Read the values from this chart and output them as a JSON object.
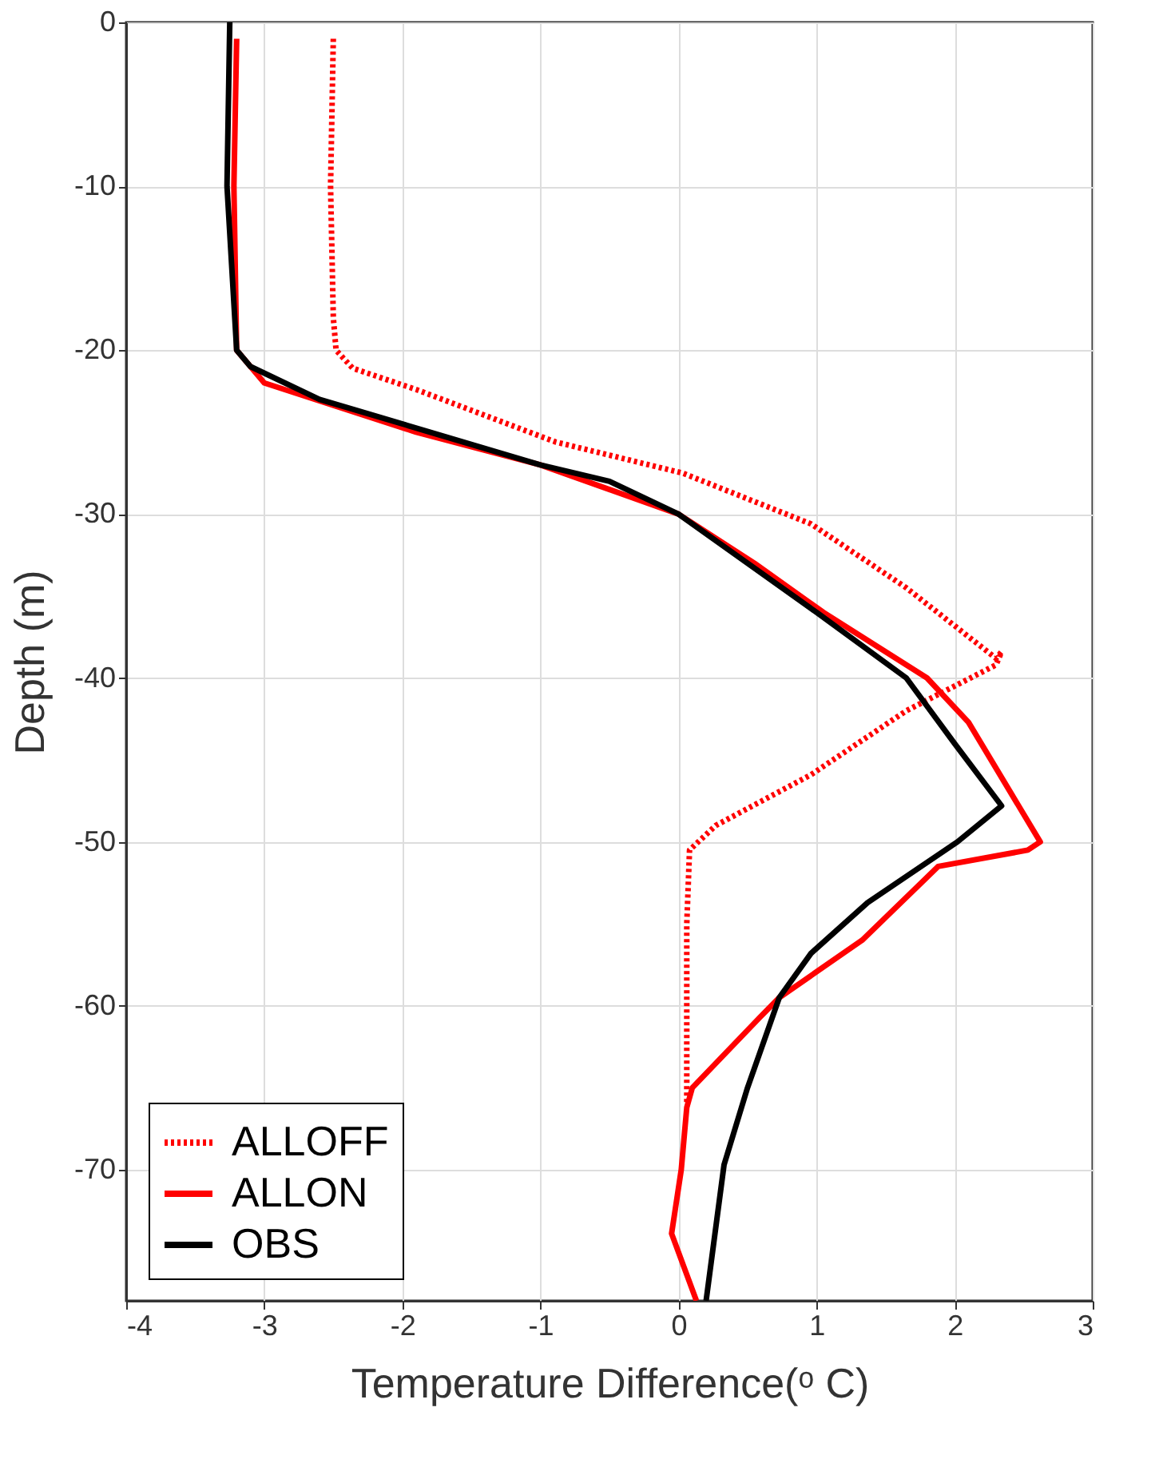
{
  "chart_data": {
    "type": "line",
    "xlabel": "Temperature Difference(ᵒ C)",
    "ylabel": "Depth (m)",
    "xlim": [
      -4,
      3
    ],
    "xticks": [
      -4,
      -3,
      -2,
      -1,
      0,
      1,
      2,
      3
    ],
    "ylim": [
      -78,
      0
    ],
    "yticks": [
      -70,
      -60,
      -50,
      -40,
      -30,
      -20,
      -10,
      0
    ],
    "grid": true,
    "legend": "bottom left",
    "marker": "none",
    "series": [
      {
        "name": "ALLOFF",
        "color": "#ff0000",
        "line_style": "dotted",
        "x": [
          -2.5,
          -2.52,
          -2.5,
          -2.48,
          -2.36,
          -1.9,
          -0.89,
          0.03,
          0.96,
          1.65,
          2.3,
          2.34,
          2.3,
          1.65,
          0.96,
          0.27,
          0.08,
          0.06,
          0.06,
          0.06
        ],
        "values": [
          -1,
          -10,
          -18,
          -20,
          -21.1,
          -22.4,
          -25.6,
          -27.5,
          -30.6,
          -34.5,
          -38.8,
          -38.4,
          -39.2,
          -42,
          -45.9,
          -49,
          -50.5,
          -55,
          -65,
          -66
        ]
      },
      {
        "name": "ALLON",
        "color": "#ff0000",
        "line_style": "solid",
        "x": [
          -3.2,
          -3.22,
          -3.2,
          -3.0,
          -1.9,
          -1.0,
          0,
          0.55,
          1.05,
          1.8,
          2.1,
          2.62,
          2.53,
          1.88,
          1.33,
          0.73,
          0.59,
          0.1,
          0.06,
          0.02,
          -0.05,
          0.13
        ],
        "values": [
          -1,
          -10,
          -20,
          -22,
          -25,
          -27,
          -30,
          -33,
          -36,
          -40,
          -42.7,
          -50,
          -50.5,
          -51.5,
          -56,
          -59.5,
          -60.7,
          -65,
          -66.2,
          -70,
          -73.9,
          -78
        ]
      },
      {
        "name": "OBS",
        "color": "#000000",
        "line_style": "solid",
        "x": [
          -3.25,
          -3.27,
          -3.2,
          -3.1,
          -2.6,
          -1.8,
          -1.0,
          -0.5,
          0,
          0.5,
          1.0,
          1.65,
          2.0,
          2.34,
          2.02,
          1.37,
          0.96,
          0.73,
          0.5,
          0.33,
          0.2
        ],
        "values": [
          0,
          -10,
          -20,
          -21,
          -23,
          -25,
          -27,
          -28,
          -30,
          -33,
          -36,
          -40,
          -44,
          -47.8,
          -50,
          -53.7,
          -56.8,
          -59.5,
          -65,
          -69.7,
          -78
        ]
      }
    ]
  }
}
